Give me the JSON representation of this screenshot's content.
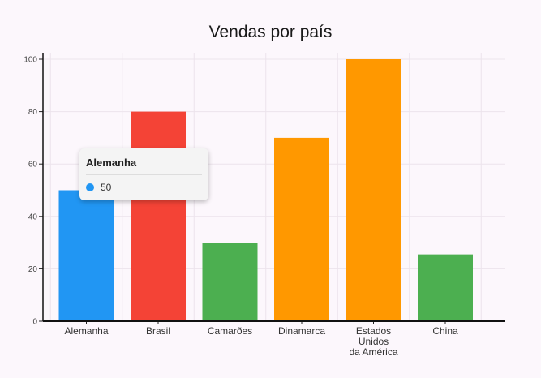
{
  "chart_data": {
    "type": "bar",
    "title": "Vendas por país",
    "categories": [
      "Alemanha",
      "Brasil",
      "Camarões",
      "Dinamarca",
      "Estados Unidos da América",
      "China"
    ],
    "category_display": [
      [
        "Alemanha"
      ],
      [
        "Brasil"
      ],
      [
        "Camarões"
      ],
      [
        "Dinamarca"
      ],
      [
        "Estados",
        "Unidos",
        "da América"
      ],
      [
        "China"
      ]
    ],
    "values": [
      50,
      80,
      30,
      70,
      100,
      25.5
    ],
    "colors": [
      "#2196f3",
      "#f44336",
      "#4caf50",
      "#ff9800",
      "#ff9800",
      "#4caf50"
    ],
    "ylim": [
      0,
      100
    ],
    "yticks": [
      0,
      20,
      40,
      60,
      80,
      100
    ],
    "xlabel": "",
    "ylabel": "",
    "grid": true,
    "tooltip": {
      "title": "Alemanha",
      "value": "50",
      "dot_color": "#2196f3"
    }
  }
}
